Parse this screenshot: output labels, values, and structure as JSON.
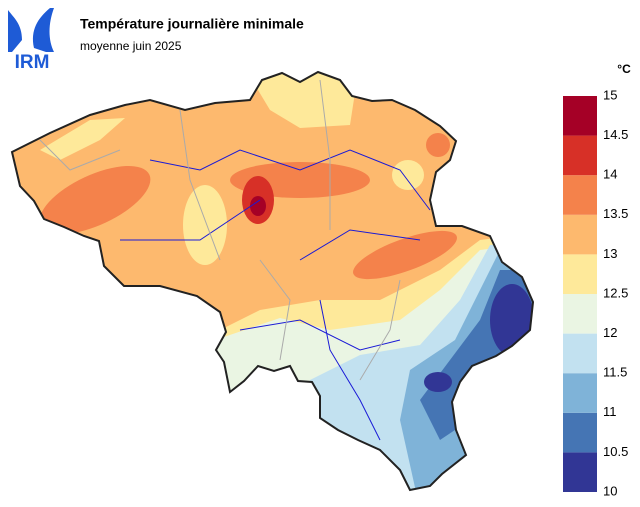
{
  "header": {
    "logo": "IRM",
    "title": "Température journalière minimale",
    "subtitle": "moyenne juin 2025"
  },
  "legend": {
    "unit": "°C",
    "bounds": [
      10,
      10.5,
      11,
      11.5,
      12,
      12.5,
      13,
      13.5,
      14,
      14.5,
      15
    ],
    "colors": [
      "#313695",
      "#4575b4",
      "#7fb3d8",
      "#c2e1f0",
      "#eaf5e3",
      "#fee99a",
      "#fdb96e",
      "#f4824b",
      "#d73027",
      "#a50026"
    ]
  }
}
